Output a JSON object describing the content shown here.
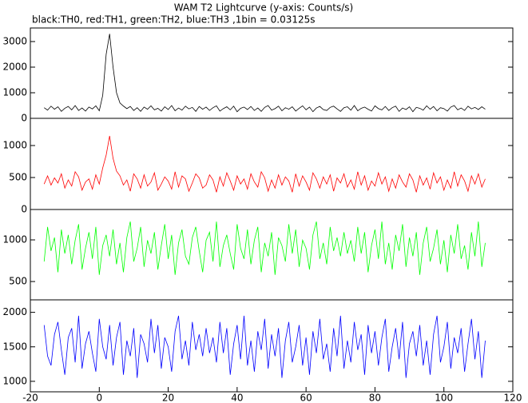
{
  "title": "WAM T2 Lightcurve (y-axis: Counts/s)",
  "subtitle": "black:TH0, red:TH1, green:TH2, blue:TH3 ,1bin = 0.03125s",
  "chart_data": [
    {
      "type": "line",
      "x": [
        -16,
        -15,
        -14,
        -13,
        -12,
        -11,
        -10,
        -9,
        -8,
        -7,
        -6,
        -5,
        -4,
        -3,
        -2,
        -1,
        0,
        1,
        2,
        3,
        4,
        5,
        6,
        7,
        8,
        9,
        10,
        11,
        12,
        13,
        14,
        15,
        16,
        17,
        18,
        19,
        20,
        21,
        22,
        23,
        24,
        25,
        26,
        27,
        28,
        29,
        30,
        31,
        32,
        33,
        34,
        35,
        36,
        37,
        38,
        39,
        40,
        41,
        42,
        43,
        44,
        45,
        46,
        47,
        48,
        49,
        50,
        51,
        52,
        53,
        54,
        55,
        56,
        57,
        58,
        59,
        60,
        61,
        62,
        63,
        64,
        65,
        66,
        67,
        68,
        69,
        70,
        71,
        72,
        73,
        74,
        75,
        76,
        77,
        78,
        79,
        80,
        81,
        82,
        83,
        84,
        85,
        86,
        87,
        88,
        89,
        90,
        91,
        92,
        93,
        94,
        95,
        96,
        97,
        98,
        99,
        100,
        101,
        102,
        103,
        104,
        105,
        106,
        107,
        108,
        109,
        110,
        111,
        112
      ],
      "xlim": [
        -20,
        120
      ],
      "ylim": [
        0,
        3530
      ],
      "yticks": [
        0,
        1000,
        2000,
        3000
      ],
      "series": [
        {
          "name": "TH0",
          "color": "#000000",
          "values": [
            416,
            320,
            476,
            356,
            452,
            272,
            392,
            464,
            332,
            500,
            308,
            404,
            284,
            440,
            368,
            488,
            296,
            900,
            2500,
            3300,
            2000,
            1000,
            600,
            480,
            380,
            464,
            308,
            416,
            272,
            440,
            356,
            488,
            332,
            392,
            284,
            452,
            344,
            500,
            296,
            404,
            320,
            476,
            368,
            428,
            272,
            464,
            356,
            440,
            308,
            416,
            488,
            284,
            380,
            452,
            332,
            476,
            260,
            392,
            440,
            344,
            464,
            308,
            404,
            272,
            428,
            500,
            320,
            380,
            476,
            296,
            416,
            356,
            452,
            284,
            392,
            488,
            332,
            440,
            260,
            404,
            464,
            344,
            308,
            428,
            476,
            368,
            272,
            416,
            452,
            320,
            500,
            296,
            392,
            440,
            356,
            284,
            488,
            380,
            332,
            464,
            308,
            416,
            476,
            272,
            404,
            344,
            452,
            260,
            428,
            392,
            320,
            488,
            356,
            464,
            296,
            416,
            380,
            284,
            440,
            500,
            332,
            404,
            308,
            476,
            368,
            428,
            344,
            452,
            356
          ]
        }
      ]
    },
    {
      "type": "line",
      "xlim": [
        -20,
        120
      ],
      "ylim": [
        0,
        1425
      ],
      "yticks": [
        0,
        500,
        1000
      ],
      "series": [
        {
          "name": "TH1",
          "color": "#ff0000",
          "values": [
            398,
            526,
            382,
            494,
            414,
            558,
            334,
            462,
            366,
            590,
            510,
            302,
            430,
            478,
            318,
            542,
            398,
            650,
            850,
            1150,
            800,
            600,
            526,
            382,
            462,
            286,
            558,
            478,
            334,
            542,
            366,
            430,
            574,
            302,
            398,
            510,
            446,
            318,
            590,
            350,
            526,
            478,
            286,
            414,
            558,
            494,
            334,
            382,
            542,
            462,
            270,
            510,
            366,
            574,
            446,
            302,
            526,
            398,
            478,
            318,
            558,
            430,
            350,
            590,
            494,
            286,
            462,
            334,
            542,
            382,
            510,
            446,
            270,
            558,
            366,
            526,
            430,
            302,
            574,
            478,
            334,
            510,
            398,
            542,
            286,
            494,
            414,
            558,
            350,
            462,
            318,
            590,
            382,
            526,
            302,
            446,
            366,
            574,
            398,
            510,
            286,
            478,
            334,
            542,
            430,
            350,
            558,
            462,
            270,
            526,
            382,
            494,
            318,
            574,
            414,
            510,
            302,
            462,
            334,
            590,
            366,
            542,
            446,
            286,
            526,
            398,
            558,
            350,
            478
          ]
        }
      ]
    },
    {
      "type": "line",
      "xlim": [
        -20,
        120
      ],
      "ylim": [
        280,
        1365
      ],
      "yticks": [
        500,
        1000
      ],
      "series": [
        {
          "name": "TH2",
          "color": "#00ff00",
          "values": [
            740,
            1156,
            868,
            1028,
            612,
            1124,
            836,
            1060,
            708,
            996,
            1188,
            644,
            900,
            1092,
            772,
            1156,
            580,
            932,
            1060,
            804,
            1124,
            708,
            964,
            612,
            1028,
            1220,
            740,
            900,
            1156,
            676,
            996,
            836,
            1092,
            644,
            932,
            1188,
            772,
            1060,
            580,
            964,
            1124,
            804,
            708,
            1028,
            1156,
            868,
            612,
            996,
            1092,
            740,
            1220,
            676,
            932,
            1060,
            836,
            644,
            1188,
            900,
            772,
            1124,
            708,
            996,
            1156,
            612,
            964,
            804,
            1092,
            580,
            1028,
            932,
            740,
            1188,
            836,
            1124,
            676,
            996,
            900,
            644,
            1060,
            1220,
            772,
            964,
            708,
            1156,
            868,
            1028,
            804,
            1092,
            836,
            996,
            740,
            1156,
            836,
            1092,
            612,
            932,
            1124,
            772,
            1220,
            708,
            964,
            644,
            1060,
            868,
            1188,
            676,
            1028,
            804,
            1092,
            580,
            964,
            1156,
            740,
            900,
            1124,
            708,
            996,
            612,
            1060,
            836,
            1188,
            772,
            932,
            644,
            1092,
            804,
            1220,
            676,
            964
          ]
        }
      ]
    },
    {
      "type": "line",
      "xlim": [
        -20,
        120
      ],
      "ylim": [
        848,
        2181
      ],
      "yticks": [
        1000,
        1500,
        2000
      ],
      "xticks": [
        -20,
        0,
        20,
        40,
        60,
        80,
        100,
        120
      ],
      "series": [
        {
          "name": "TH3",
          "color": "#0000ff",
          "values": [
            1815,
            1365,
            1230,
            1680,
            1860,
            1455,
            1095,
            1635,
            1770,
            1275,
            1950,
            1185,
            1545,
            1725,
            1410,
            1140,
            1905,
            1500,
            1320,
            1815,
            1230,
            1635,
            1860,
            1095,
            1590,
            1365,
            1770,
            1050,
            1680,
            1545,
            1275,
            1905,
            1410,
            1815,
            1185,
            1635,
            1500,
            1140,
            1725,
            1950,
            1320,
            1590,
            1230,
            1860,
            1455,
            1680,
            1365,
            1770,
            1410,
            1635,
            1275,
            1860,
            1410,
            1770,
            1095,
            1545,
            1815,
            1320,
            1950,
            1230,
            1590,
            1140,
            1725,
            1455,
            1905,
            1185,
            1680,
            1365,
            1770,
            1050,
            1590,
            1860,
            1275,
            1500,
            1815,
            1230,
            1635,
            1095,
            1725,
            1410,
            1905,
            1320,
            1545,
            1140,
            1770,
            1365,
            1950,
            1185,
            1590,
            1275,
            1860,
            1455,
            1680,
            1095,
            1815,
            1410,
            1725,
            1230,
            1635,
            1905,
            1140,
            1500,
            1770,
            1320,
            1860,
            1050,
            1545,
            1725,
            1365,
            1815,
            1230,
            1590,
            1095,
            1680,
            1950,
            1275,
            1500,
            1860,
            1185,
            1635,
            1410,
            1770,
            1140,
            1545,
            1905,
            1320,
            1725,
            1050,
            1590
          ]
        }
      ]
    }
  ]
}
